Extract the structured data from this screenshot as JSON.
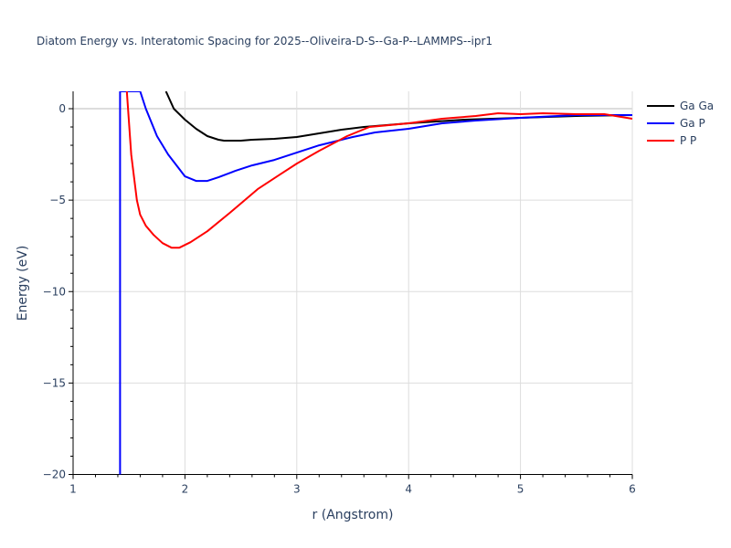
{
  "title": "Diatom Energy vs. Interatomic Spacing for 2025--Oliveira-D-S--Ga-P--LAMMPS--ipr1",
  "legend": [
    {
      "label": "Ga Ga",
      "color": "#000000"
    },
    {
      "label": "Ga P",
      "color": "#0000ff"
    },
    {
      "label": "P P",
      "color": "#ff0000"
    }
  ],
  "chart_data": {
    "type": "line",
    "title": "Diatom Energy vs. Interatomic Spacing for 2025--Oliveira-D-S--Ga-P--LAMMPS--ipr1",
    "xlabel": "r (Angstrom)",
    "ylabel": "Energy (eV)",
    "xlim": [
      1,
      6
    ],
    "ylim": [
      -20,
      0.95
    ],
    "x_ticks": [
      "1",
      "2",
      "3",
      "4",
      "5",
      "6"
    ],
    "y_ticks": [
      "0",
      "−5",
      "−10",
      "−15",
      "−20"
    ],
    "grid": true,
    "legend_position": "right",
    "series": [
      {
        "name": "Ga Ga",
        "color": "#000000",
        "x": [
          1.83,
          1.9,
          2.0,
          2.1,
          2.2,
          2.3,
          2.35,
          2.5,
          2.6,
          2.8,
          3.0,
          3.2,
          3.4,
          3.6,
          3.8,
          4.0,
          4.5,
          5.0,
          5.5,
          6.0
        ],
        "y": [
          0.95,
          0.0,
          -0.6,
          -1.1,
          -1.5,
          -1.7,
          -1.75,
          -1.75,
          -1.7,
          -1.65,
          -1.55,
          -1.35,
          -1.15,
          -1.0,
          -0.9,
          -0.8,
          -0.6,
          -0.5,
          -0.4,
          -0.35
        ]
      },
      {
        "name": "Ga P",
        "color": "#0000ff",
        "x": [
          1.42,
          1.42,
          1.42,
          1.6,
          1.65,
          1.75,
          1.85,
          1.95,
          2.0,
          2.1,
          2.2,
          2.3,
          2.45,
          2.6,
          2.8,
          3.0,
          3.2,
          3.5,
          3.7,
          4.0,
          4.3,
          4.6,
          5.0,
          5.5,
          6.0
        ],
        "y": [
          -20.0,
          0.95,
          0.95,
          0.95,
          0.0,
          -1.5,
          -2.5,
          -3.3,
          -3.7,
          -3.95,
          -3.95,
          -3.75,
          -3.4,
          -3.1,
          -2.8,
          -2.4,
          -2.0,
          -1.55,
          -1.3,
          -1.1,
          -0.8,
          -0.65,
          -0.5,
          -0.35,
          -0.35
        ]
      },
      {
        "name": "P P",
        "color": "#ff0000",
        "x": [
          1.48,
          1.52,
          1.57,
          1.6,
          1.65,
          1.72,
          1.8,
          1.88,
          1.95,
          2.05,
          2.2,
          2.4,
          2.65,
          2.85,
          3.0,
          3.2,
          3.45,
          3.65,
          4.0,
          4.3,
          4.6,
          4.8,
          5.0,
          5.2,
          5.5,
          5.75,
          6.0
        ],
        "y": [
          0.95,
          -2.5,
          -5.0,
          -5.8,
          -6.4,
          -6.9,
          -7.35,
          -7.6,
          -7.6,
          -7.3,
          -6.7,
          -5.7,
          -4.4,
          -3.6,
          -3.0,
          -2.3,
          -1.5,
          -1.0,
          -0.8,
          -0.55,
          -0.4,
          -0.25,
          -0.3,
          -0.25,
          -0.3,
          -0.3,
          -0.55
        ]
      }
    ]
  }
}
